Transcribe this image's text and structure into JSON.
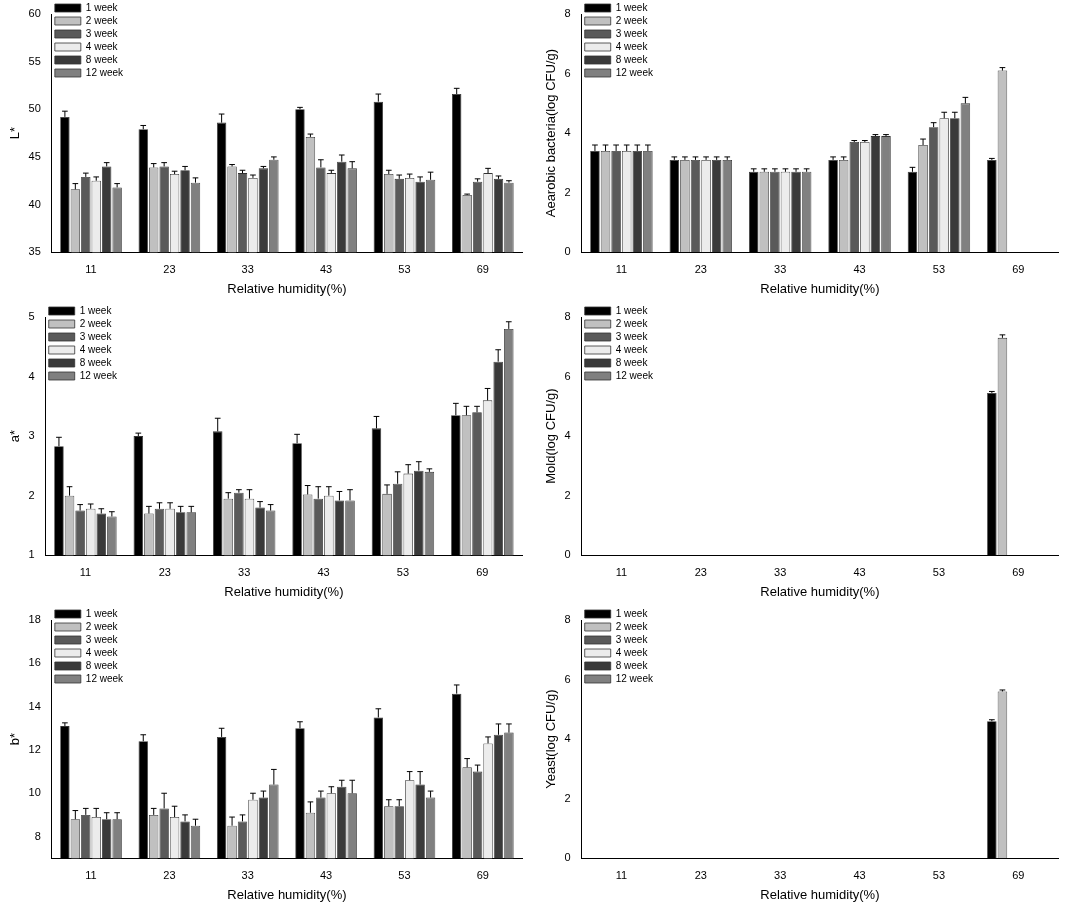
{
  "chart_data": [
    {
      "type": "bar",
      "y_label": "L*",
      "x_label": "Relative humidity(%)",
      "categories": [
        "11",
        "23",
        "33",
        "43",
        "53",
        "69"
      ],
      "ylim": [
        35,
        60
      ],
      "yticks": [
        35,
        40,
        45,
        50,
        55,
        60
      ],
      "grid": false,
      "legend": "upper left",
      "series": [
        {
          "name": "1 week",
          "color": "#000000",
          "values": [
            49.2,
            47.9,
            48.6,
            50.0,
            50.8,
            51.6
          ],
          "errors": [
            0.6,
            0.4,
            0.9,
            0.2,
            0.8,
            0.6
          ]
        },
        {
          "name": "2 week",
          "color": "#c0c0c0",
          "values": [
            41.6,
            43.9,
            44.0,
            47.1,
            43.2,
            41.0
          ],
          "errors": [
            0.6,
            0.4,
            0.2,
            0.3,
            0.4,
            0.1
          ]
        },
        {
          "name": "3 week",
          "color": "#5a5a5a",
          "values": [
            42.9,
            44.0,
            43.3,
            43.9,
            42.7,
            42.4
          ],
          "errors": [
            0.4,
            0.4,
            0.3,
            0.8,
            0.4,
            0.3
          ]
        },
        {
          "name": "4 week",
          "color": "#ececec",
          "values": [
            42.5,
            43.2,
            42.8,
            43.3,
            42.8,
            43.3
          ],
          "errors": [
            0.4,
            0.3,
            0.3,
            0.3,
            0.4,
            0.5
          ]
        },
        {
          "name": "8 week",
          "color": "#3a3a3a",
          "values": [
            44.0,
            43.6,
            43.8,
            44.5,
            42.4,
            42.7
          ],
          "errors": [
            0.4,
            0.4,
            0.2,
            0.7,
            0.5,
            0.3
          ]
        },
        {
          "name": "12 week",
          "color": "#808080",
          "values": [
            41.8,
            42.3,
            44.7,
            43.8,
            42.6,
            42.3
          ],
          "errors": [
            0.4,
            0.5,
            0.3,
            0.7,
            0.8,
            0.2
          ]
        }
      ]
    },
    {
      "type": "bar",
      "y_label": "Aearobic bacteria(log CFU/g)",
      "x_label": "Relative humidity(%)",
      "categories": [
        "11",
        "23",
        "33",
        "43",
        "53",
        "69"
      ],
      "ylim": [
        0,
        8
      ],
      "yticks": [
        0,
        2,
        4,
        6,
        8
      ],
      "grid": false,
      "legend": "upper left",
      "series": [
        {
          "name": "1 week",
          "color": "#000000",
          "values": [
            3.4,
            3.1,
            2.7,
            3.1,
            2.7,
            3.1
          ],
          "errors": [
            0.2,
            0.1,
            0.1,
            0.1,
            0.15,
            0.05
          ]
        },
        {
          "name": "2 week",
          "color": "#c0c0c0",
          "values": [
            3.4,
            3.1,
            2.7,
            3.1,
            3.6,
            6.1
          ],
          "errors": [
            0.2,
            0.1,
            0.1,
            0.1,
            0.2,
            0.1
          ]
        },
        {
          "name": "3 week",
          "color": "#5a5a5a",
          "values": [
            3.4,
            3.1,
            2.7,
            3.7,
            4.2,
            null
          ],
          "errors": [
            0.2,
            0.1,
            0.1,
            0.05,
            0.15,
            null
          ]
        },
        {
          "name": "4 week",
          "color": "#ececec",
          "values": [
            3.4,
            3.1,
            2.7,
            3.7,
            4.5,
            null
          ],
          "errors": [
            0.2,
            0.1,
            0.1,
            0.05,
            0.2,
            null
          ]
        },
        {
          "name": "8 week",
          "color": "#3a3a3a",
          "values": [
            3.4,
            3.1,
            2.7,
            3.9,
            4.5,
            null
          ],
          "errors": [
            0.2,
            0.1,
            0.1,
            0.05,
            0.2,
            null
          ]
        },
        {
          "name": "12 week",
          "color": "#808080",
          "values": [
            3.4,
            3.1,
            2.7,
            3.9,
            5.0,
            null
          ],
          "errors": [
            0.2,
            0.1,
            0.1,
            0.05,
            0.2,
            null
          ]
        }
      ]
    },
    {
      "type": "bar",
      "y_label": "a*",
      "x_label": "Relative humidity(%)",
      "categories": [
        "11",
        "23",
        "33",
        "43",
        "53",
        "69"
      ],
      "ylim": [
        1,
        5
      ],
      "yticks": [
        1,
        2,
        3,
        4,
        5
      ],
      "grid": false,
      "legend": "upper left",
      "series": [
        {
          "name": "1 week",
          "color": "#000000",
          "values": [
            2.83,
            3.0,
            3.08,
            2.88,
            3.13,
            3.35
          ],
          "errors": [
            0.15,
            0.05,
            0.22,
            0.15,
            0.2,
            0.2
          ]
        },
        {
          "name": "2 week",
          "color": "#c0c0c0",
          "values": [
            2.0,
            1.7,
            1.95,
            2.02,
            2.03,
            3.35
          ],
          "errors": [
            0.15,
            0.12,
            0.1,
            0.15,
            0.15,
            0.15
          ]
        },
        {
          "name": "3 week",
          "color": "#5a5a5a",
          "values": [
            1.75,
            1.78,
            2.05,
            1.95,
            2.2,
            3.4
          ],
          "errors": [
            0.1,
            0.1,
            0.05,
            0.2,
            0.2,
            0.1
          ]
        },
        {
          "name": "4 week",
          "color": "#ececec",
          "values": [
            1.78,
            1.78,
            1.95,
            2.0,
            2.37,
            3.6
          ],
          "errors": [
            0.08,
            0.1,
            0.15,
            0.15,
            0.15,
            0.2
          ]
        },
        {
          "name": "8 week",
          "color": "#3a3a3a",
          "values": [
            1.7,
            1.72,
            1.8,
            1.92,
            2.42,
            4.25
          ],
          "errors": [
            0.08,
            0.1,
            0.1,
            0.15,
            0.15,
            0.2
          ]
        },
        {
          "name": "12 week",
          "color": "#808080",
          "values": [
            1.65,
            1.72,
            1.75,
            1.92,
            2.4,
            4.8
          ],
          "errors": [
            0.08,
            0.1,
            0.1,
            0.18,
            0.05,
            0.12
          ]
        }
      ]
    },
    {
      "type": "bar",
      "y_label": "Mold(log CFU/g)",
      "x_label": "Relative humidity(%)",
      "categories": [
        "11",
        "23",
        "33",
        "43",
        "53",
        "69"
      ],
      "ylim": [
        0,
        8
      ],
      "yticks": [
        0,
        2,
        4,
        6,
        8
      ],
      "grid": false,
      "legend": "upper left",
      "series": [
        {
          "name": "1 week",
          "color": "#000000",
          "values": [
            null,
            null,
            null,
            null,
            null,
            5.45
          ],
          "errors": [
            null,
            null,
            null,
            null,
            null,
            0.05
          ]
        },
        {
          "name": "2 week",
          "color": "#c0c0c0",
          "values": [
            null,
            null,
            null,
            null,
            null,
            7.3
          ],
          "errors": [
            null,
            null,
            null,
            null,
            null,
            0.1
          ]
        },
        {
          "name": "3 week",
          "color": "#5a5a5a",
          "values": [
            null,
            null,
            null,
            null,
            null,
            null
          ],
          "errors": [
            null,
            null,
            null,
            null,
            null,
            null
          ]
        },
        {
          "name": "4 week",
          "color": "#ececec",
          "values": [
            null,
            null,
            null,
            null,
            null,
            null
          ],
          "errors": [
            null,
            null,
            null,
            null,
            null,
            null
          ]
        },
        {
          "name": "8 week",
          "color": "#3a3a3a",
          "values": [
            null,
            null,
            null,
            null,
            null,
            null
          ],
          "errors": [
            null,
            null,
            null,
            null,
            null,
            null
          ]
        },
        {
          "name": "12 week",
          "color": "#808080",
          "values": [
            null,
            null,
            null,
            null,
            null,
            null
          ],
          "errors": [
            null,
            null,
            null,
            null,
            null,
            null
          ]
        }
      ]
    },
    {
      "type": "bar",
      "y_label": "b*",
      "x_label": "Relative humidity(%)",
      "categories": [
        "11",
        "23",
        "33",
        "43",
        "53",
        "69"
      ],
      "ylim": [
        7,
        18
      ],
      "yticks": [
        8,
        10,
        12,
        14,
        16,
        18
      ],
      "grid": false,
      "legend": "upper left",
      "series": [
        {
          "name": "1 week",
          "color": "#000000",
          "values": [
            13.1,
            12.4,
            12.6,
            13.0,
            13.5,
            14.6
          ],
          "errors": [
            0.15,
            0.3,
            0.4,
            0.3,
            0.4,
            0.4
          ]
        },
        {
          "name": "2 week",
          "color": "#c0c0c0",
          "values": [
            8.8,
            9.0,
            8.5,
            9.1,
            9.4,
            11.2
          ],
          "errors": [
            0.4,
            0.3,
            0.4,
            0.5,
            0.3,
            0.4
          ]
        },
        {
          "name": "3 week",
          "color": "#5a5a5a",
          "values": [
            9.0,
            9.3,
            8.7,
            9.8,
            9.4,
            11.0
          ],
          "errors": [
            0.3,
            0.7,
            0.3,
            0.3,
            0.3,
            0.3
          ]
        },
        {
          "name": "4 week",
          "color": "#ececec",
          "values": [
            8.9,
            8.9,
            9.7,
            10.0,
            10.6,
            12.3
          ],
          "errors": [
            0.4,
            0.5,
            0.3,
            0.3,
            0.4,
            0.3
          ]
        },
        {
          "name": "8 week",
          "color": "#3a3a3a",
          "values": [
            8.8,
            8.7,
            9.8,
            10.3,
            10.4,
            12.7
          ],
          "errors": [
            0.3,
            0.3,
            0.3,
            0.3,
            0.6,
            0.5
          ]
        },
        {
          "name": "12 week",
          "color": "#808080",
          "values": [
            8.8,
            8.5,
            10.4,
            10.0,
            9.8,
            12.8
          ],
          "errors": [
            0.3,
            0.3,
            0.7,
            0.6,
            0.3,
            0.4
          ]
        }
      ]
    },
    {
      "type": "bar",
      "y_label": "Yeast(log CFU/g)",
      "x_label": "Relative humidity(%)",
      "categories": [
        "11",
        "23",
        "33",
        "43",
        "53",
        "69"
      ],
      "ylim": [
        0,
        8
      ],
      "yticks": [
        0,
        2,
        4,
        6,
        8
      ],
      "grid": false,
      "legend": "upper left",
      "series": [
        {
          "name": "1 week",
          "color": "#000000",
          "values": [
            null,
            null,
            null,
            null,
            null,
            4.6
          ],
          "errors": [
            null,
            null,
            null,
            null,
            null,
            0.05
          ]
        },
        {
          "name": "2 week",
          "color": "#c0c0c0",
          "values": [
            null,
            null,
            null,
            null,
            null,
            5.6
          ],
          "errors": [
            null,
            null,
            null,
            null,
            null,
            0.05
          ]
        },
        {
          "name": "3 week",
          "color": "#5a5a5a",
          "values": [
            null,
            null,
            null,
            null,
            null,
            null
          ],
          "errors": [
            null,
            null,
            null,
            null,
            null,
            null
          ]
        },
        {
          "name": "4 week",
          "color": "#ececec",
          "values": [
            null,
            null,
            null,
            null,
            null,
            null
          ],
          "errors": [
            null,
            null,
            null,
            null,
            null,
            null
          ]
        },
        {
          "name": "8 week",
          "color": "#3a3a3a",
          "values": [
            null,
            null,
            null,
            null,
            null,
            null
          ],
          "errors": [
            null,
            null,
            null,
            null,
            null,
            null
          ]
        },
        {
          "name": "12 week",
          "color": "#808080",
          "values": [
            null,
            null,
            null,
            null,
            null,
            null
          ],
          "errors": [
            null,
            null,
            null,
            null,
            null,
            null
          ]
        }
      ]
    }
  ]
}
